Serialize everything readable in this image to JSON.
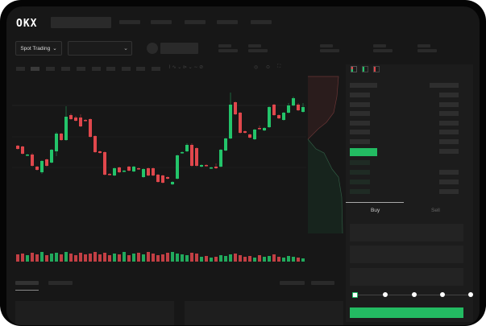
{
  "header": {
    "logo": "OKX"
  },
  "controls": {
    "spot_trading_label": "Spot Trading",
    "dropdown_icon": "chevron-down-icon"
  },
  "order_form": {
    "tabs": [
      {
        "label": "Buy",
        "active": true
      },
      {
        "label": "Sell",
        "active": false
      }
    ],
    "slider_percent": 0,
    "buy_button_color": "#23bb62"
  },
  "colors": {
    "up": "#23c46a",
    "down": "#e0474c",
    "background": "#171717"
  },
  "chart_data": {
    "type": "candlestick",
    "candles": [
      [
        69,
        70,
        64,
        65
      ],
      [
        68,
        69,
        58,
        59
      ],
      [
        57,
        59,
        56,
        58
      ],
      [
        58,
        60,
        43,
        44
      ],
      [
        43,
        44,
        38,
        39
      ],
      [
        36,
        51,
        34,
        50
      ],
      [
        52,
        53,
        43,
        44
      ],
      [
        48,
        65,
        47,
        64
      ],
      [
        62,
        86,
        56,
        84
      ],
      [
        84,
        85,
        75,
        76
      ],
      [
        76,
        118,
        75,
        105
      ],
      [
        107,
        109,
        101,
        102
      ],
      [
        104,
        106,
        99,
        100
      ],
      [
        104,
        108,
        92,
        93
      ],
      [
        101,
        102,
        99,
        100
      ],
      [
        102,
        103,
        79,
        80
      ],
      [
        81,
        82,
        60,
        61
      ],
      [
        62,
        63,
        59,
        60
      ],
      [
        61,
        62,
        32,
        33
      ],
      [
        34,
        35,
        32,
        33
      ],
      [
        32,
        42,
        31,
        41
      ],
      [
        42,
        43,
        35,
        36
      ],
      [
        37,
        39,
        36,
        38
      ],
      [
        43,
        44,
        37,
        38
      ],
      [
        37,
        44,
        36,
        43
      ],
      [
        41,
        42,
        39,
        40
      ],
      [
        30,
        41,
        29,
        40
      ],
      [
        41,
        42,
        31,
        32
      ],
      [
        41,
        42,
        31,
        32
      ],
      [
        33,
        34,
        23,
        24
      ],
      [
        32,
        33,
        22,
        23
      ],
      [
        30,
        31,
        27,
        28
      ],
      [
        21,
        25,
        20,
        24
      ],
      [
        28,
        58,
        27,
        57
      ],
      [
        60,
        62,
        59,
        61
      ],
      [
        62,
        72,
        61,
        70
      ],
      [
        70,
        72,
        43,
        44
      ],
      [
        66,
        67,
        43,
        44
      ],
      [
        43,
        46,
        42,
        45
      ],
      [
        45,
        46,
        43,
        44
      ],
      [
        41,
        43,
        40,
        42
      ],
      [
        43,
        47,
        40,
        41
      ],
      [
        43,
        65,
        42,
        64
      ],
      [
        63,
        79,
        62,
        78
      ],
      [
        78,
        135,
        77,
        120
      ],
      [
        123,
        124,
        107,
        108
      ],
      [
        110,
        111,
        84,
        85
      ],
      [
        87,
        88,
        84,
        85
      ],
      [
        83,
        84,
        78,
        79
      ],
      [
        77,
        90,
        76,
        89
      ],
      [
        91,
        94,
        89,
        90
      ],
      [
        88,
        92,
        87,
        91
      ],
      [
        92,
        118,
        91,
        117
      ],
      [
        120,
        121,
        106,
        107
      ],
      [
        107,
        108,
        102,
        103
      ],
      [
        101,
        111,
        100,
        110
      ],
      [
        110,
        122,
        109,
        119
      ],
      [
        119,
        130,
        118,
        128
      ],
      [
        120,
        122,
        112,
        113
      ],
      [
        111,
        122,
        110,
        117
      ]
    ],
    "volume": [
      9,
      10,
      8,
      11,
      9,
      12,
      8,
      10,
      11,
      9,
      12,
      10,
      8,
      11,
      9,
      10,
      12,
      9,
      11,
      8,
      10,
      9,
      12,
      8,
      10,
      11,
      9,
      12,
      10,
      8,
      9,
      11,
      12,
      10,
      9,
      8,
      11,
      10,
      6,
      7,
      5,
      6,
      8,
      7,
      9,
      10,
      8,
      6,
      7,
      5,
      8,
      6,
      7,
      9,
      6,
      5,
      7,
      6,
      5,
      4
    ]
  }
}
